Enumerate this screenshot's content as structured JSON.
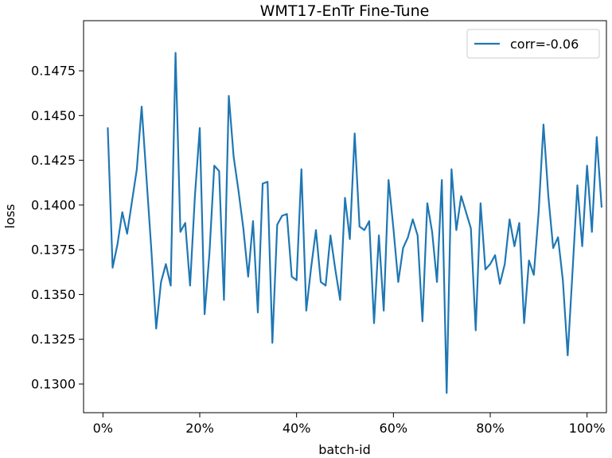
{
  "chart_data": {
    "type": "line",
    "title": "WMT17-EnTr Fine-Tune",
    "xlabel": "batch-id",
    "ylabel": "loss",
    "xlim": [
      -0.04,
      1.04
    ],
    "ylim": [
      0.1284,
      0.1503
    ],
    "x_ticks": [
      0,
      0.2,
      0.4,
      0.6,
      0.8,
      1.0
    ],
    "x_tick_labels": [
      "0%",
      "20%",
      "40%",
      "60%",
      "80%",
      "100%"
    ],
    "y_ticks": [
      0.13,
      0.1325,
      0.135,
      0.1375,
      0.14,
      0.1425,
      0.145,
      0.1475
    ],
    "y_tick_labels": [
      "0.1300",
      "0.1325",
      "0.1350",
      "0.1375",
      "0.1400",
      "0.1425",
      "0.1450",
      "0.1475"
    ],
    "grid": false,
    "legend_position": "top-right",
    "line_color": "#1f77b4",
    "series": [
      {
        "name": "corr=-0.06",
        "x_start": 0.01,
        "x_step": 0.01,
        "values": [
          0.1443,
          0.1365,
          0.1378,
          0.1396,
          0.1384,
          0.1402,
          0.142,
          0.1455,
          0.1415,
          0.1375,
          0.1331,
          0.1357,
          0.1367,
          0.1355,
          0.1485,
          0.1385,
          0.139,
          0.1355,
          0.1405,
          0.1443,
          0.1339,
          0.1373,
          0.1422,
          0.1419,
          0.1347,
          0.1461,
          0.1427,
          0.1408,
          0.1387,
          0.136,
          0.1391,
          0.134,
          0.1412,
          0.1413,
          0.1323,
          0.1389,
          0.1394,
          0.1395,
          0.136,
          0.1358,
          0.142,
          0.1341,
          0.1365,
          0.1386,
          0.1357,
          0.1355,
          0.1383,
          0.1364,
          0.1347,
          0.1404,
          0.1381,
          0.144,
          0.1388,
          0.1386,
          0.1391,
          0.1334,
          0.1383,
          0.1341,
          0.1414,
          0.1387,
          0.1357,
          0.1376,
          0.1382,
          0.1392,
          0.1383,
          0.1335,
          0.1401,
          0.1385,
          0.1357,
          0.1414,
          0.1295,
          0.142,
          0.1386,
          0.1405,
          0.1396,
          0.1387,
          0.133,
          0.1401,
          0.1364,
          0.1367,
          0.1372,
          0.1356,
          0.1367,
          0.1392,
          0.1377,
          0.139,
          0.1334,
          0.1369,
          0.1361,
          0.1396,
          0.1445,
          0.1405,
          0.1376,
          0.1382,
          0.1358,
          0.1316,
          0.1363,
          0.1411,
          0.1377,
          0.1422,
          0.1385,
          0.1438,
          0.1399
        ]
      }
    ]
  }
}
